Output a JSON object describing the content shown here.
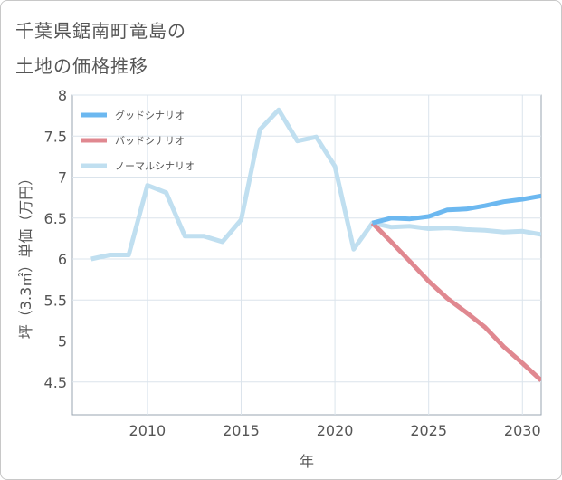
{
  "title_lines": [
    "千葉県鋸南町竜島の",
    "土地の価格推移"
  ],
  "chart_data": {
    "type": "line",
    "xlabel": "年",
    "ylabel": "坪（3.3㎡）単価（万円）",
    "xlim": [
      2006,
      2031
    ],
    "ylim": [
      4.1,
      8.0
    ],
    "x_ticks": [
      2010,
      2015,
      2020,
      2025,
      2030
    ],
    "y_ticks": [
      4.5,
      5,
      5.5,
      6,
      6.5,
      7,
      7.5,
      8
    ],
    "grid": true,
    "legend_position": "top-left",
    "series": [
      {
        "name": "グッドシナリオ",
        "color": "#6cb8f0",
        "x": [
          2022,
          2023,
          2024,
          2025,
          2026,
          2027,
          2028,
          2029,
          2030,
          2031
        ],
        "y": [
          6.44,
          6.5,
          6.49,
          6.52,
          6.6,
          6.61,
          6.65,
          6.7,
          6.73,
          6.77
        ]
      },
      {
        "name": "バッドシナリオ",
        "color": "#e08890",
        "x": [
          2022,
          2023,
          2024,
          2025,
          2026,
          2027,
          2028,
          2029,
          2030,
          2031
        ],
        "y": [
          6.44,
          6.21,
          5.97,
          5.73,
          5.52,
          5.35,
          5.17,
          4.93,
          4.73,
          4.52
        ]
      },
      {
        "name": "ノーマルシナリオ",
        "color": "#c0dff0",
        "x": [
          2007,
          2008,
          2009,
          2010,
          2011,
          2012,
          2013,
          2014,
          2015,
          2016,
          2017,
          2018,
          2019,
          2020,
          2021,
          2022,
          2023,
          2024,
          2025,
          2026,
          2027,
          2028,
          2029,
          2030,
          2031
        ],
        "y": [
          6.0,
          6.05,
          6.05,
          6.9,
          6.81,
          6.28,
          6.28,
          6.21,
          6.48,
          7.58,
          7.82,
          7.44,
          7.49,
          7.13,
          6.12,
          6.44,
          6.39,
          6.4,
          6.37,
          6.38,
          6.36,
          6.35,
          6.33,
          6.34,
          6.3
        ]
      }
    ]
  }
}
